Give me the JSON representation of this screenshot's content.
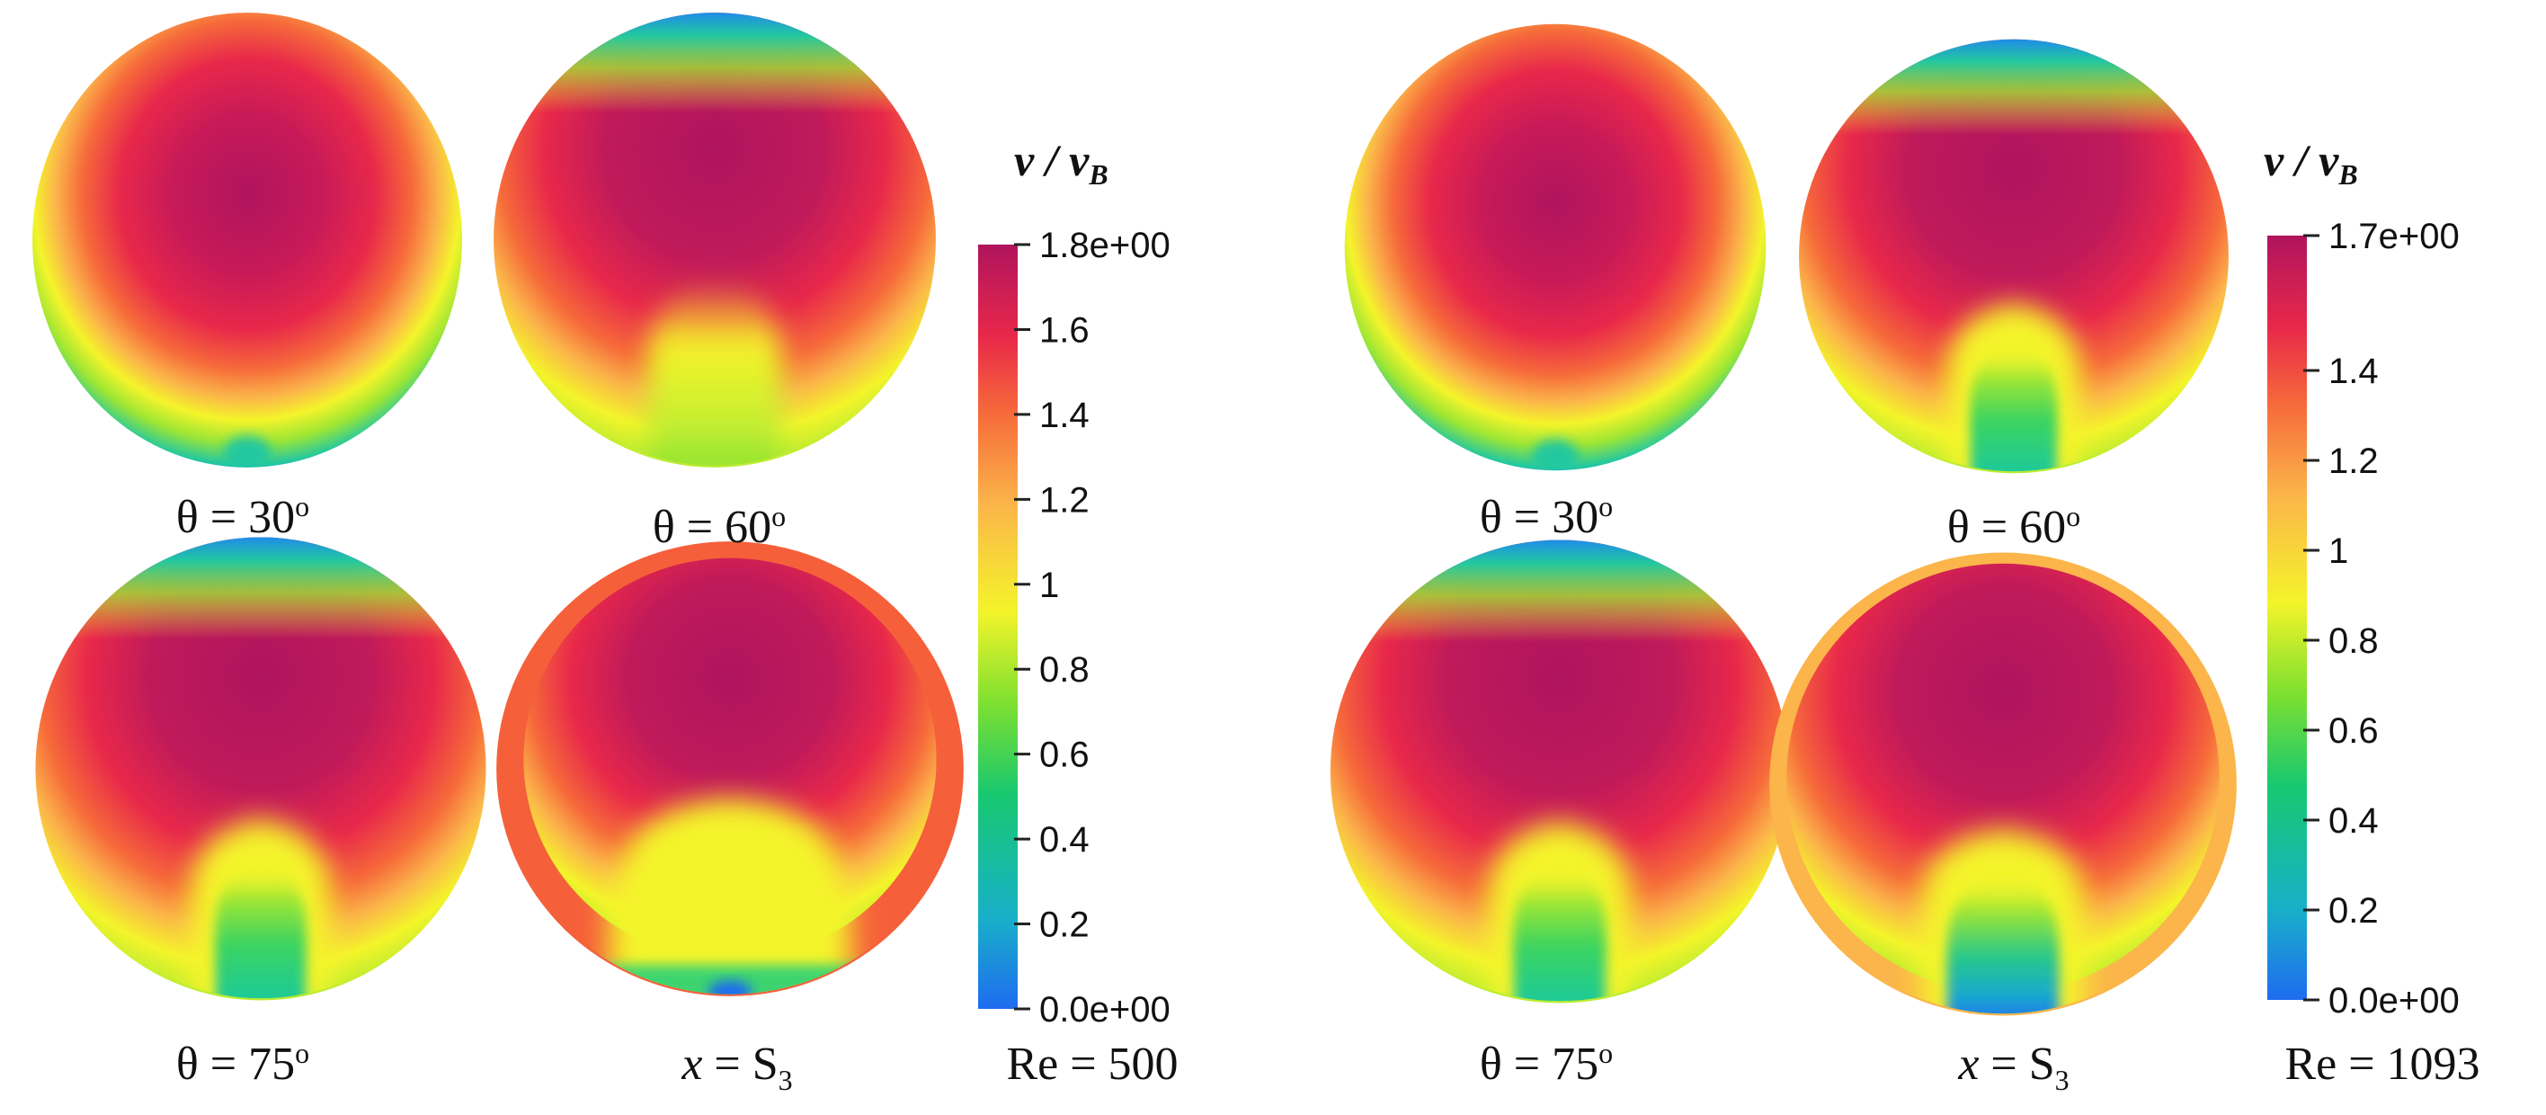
{
  "panels": [
    {
      "colorbar": {
        "title_v": "v",
        "title_sep": " / ",
        "title_vb": "v",
        "title_vb_sub": "B",
        "max_label": "1.8e+00",
        "min_label": "0.0e+00",
        "range": [
          0,
          1.8
        ],
        "ticks": [
          {
            "value": 1.6,
            "label": "1.6"
          },
          {
            "value": 1.4,
            "label": "1.4"
          },
          {
            "value": 1.2,
            "label": "1.2"
          },
          {
            "value": 1.0,
            "label": "1"
          },
          {
            "value": 0.8,
            "label": "0.8"
          },
          {
            "value": 0.6,
            "label": "0.6"
          },
          {
            "value": 0.4,
            "label": "0.4"
          },
          {
            "value": 0.2,
            "label": "0.2"
          }
        ]
      },
      "re_label": "Re = 500",
      "contours": [
        {
          "label_prefix": "θ = ",
          "label_value": "30",
          "label_sup": "o"
        },
        {
          "label_prefix": "θ = ",
          "label_value": "60",
          "label_sup": "o"
        },
        {
          "label_prefix": "θ = ",
          "label_value": "75",
          "label_sup": "o"
        },
        {
          "label_prefix": "x",
          "label_value": " = S",
          "label_sup": "3"
        }
      ]
    },
    {
      "colorbar": {
        "title_v": "v",
        "title_sep": " / ",
        "title_vb": "v",
        "title_vb_sub": "B",
        "max_label": "1.7e+00",
        "min_label": "0.0e+00",
        "range": [
          0,
          1.7
        ],
        "ticks": [
          {
            "value": 1.4,
            "label": "1.4"
          },
          {
            "value": 1.2,
            "label": "1.2"
          },
          {
            "value": 1.0,
            "label": "1"
          },
          {
            "value": 0.8,
            "label": "0.8"
          },
          {
            "value": 0.6,
            "label": "0.6"
          },
          {
            "value": 0.4,
            "label": "0.4"
          },
          {
            "value": 0.2,
            "label": "0.2"
          }
        ]
      },
      "re_label": "Re = 1093",
      "contours": [
        {
          "label_prefix": "θ = ",
          "label_value": "30",
          "label_sup": "o"
        },
        {
          "label_prefix": "θ = ",
          "label_value": "60",
          "label_sup": "o"
        },
        {
          "label_prefix": "θ = ",
          "label_value": "75",
          "label_sup": "o"
        },
        {
          "label_prefix": "x",
          "label_value": " = S",
          "label_sup": "3"
        }
      ]
    }
  ],
  "colormap": [
    "#1f6cf0",
    "#18b0c8",
    "#18c870",
    "#7ee030",
    "#f4f42a",
    "#fbb54a",
    "#f66a3a",
    "#e8284a",
    "#b0145e"
  ]
}
